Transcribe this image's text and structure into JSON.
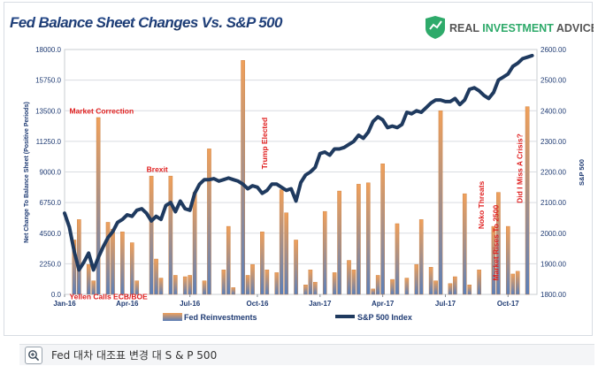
{
  "logo": {
    "brand_plain": "REAL ",
    "brand_accent": "INVESTMENT",
    "brand_end": " ADVICE"
  },
  "caption": {
    "text": "Fed 대차 대조표 변경 대 S & P 500"
  },
  "colors": {
    "title": "#1f3b73",
    "line": "#1f3a5f",
    "bar_top": "#f0a05a",
    "bar_bottom": "#5b7fb8",
    "annotation": "#e02020",
    "axis_text": "#1f3b73",
    "logo_green": "#2eaa6a"
  },
  "chart_data": {
    "type": "bar+line",
    "title": "Fed Balance Sheet Changes Vs. S&P 500",
    "ylabel_left": "Net Change To Balance Sheet (Positive Periods)",
    "ylabel_right": "S&P 500",
    "ylim_left": [
      0,
      18000
    ],
    "ylim_right": [
      1800,
      2600
    ],
    "yticks_left": [
      "0.0",
      "2250.0",
      "4500.0",
      "6750.0",
      "9000.0",
      "11250.0",
      "13500.0",
      "15750.0",
      "18000.0"
    ],
    "yticks_right": [
      "1800.00",
      "1900.00",
      "2000.00",
      "2100.00",
      "2200.00",
      "2300.00",
      "2400.00",
      "2500.00",
      "2600.00"
    ],
    "x_range": [
      0,
      98
    ],
    "x_ticks": [
      {
        "label": "Jan-16",
        "x": 0
      },
      {
        "label": "Apr-16",
        "x": 13
      },
      {
        "label": "Jul-16",
        "x": 26
      },
      {
        "label": "Oct-16",
        "x": 40
      },
      {
        "label": "Jan-17",
        "x": 53
      },
      {
        "label": "Apr-17",
        "x": 66
      },
      {
        "label": "Jul-17",
        "x": 79
      },
      {
        "label": "Oct-17",
        "x": 92
      }
    ],
    "legend": [
      "Fed Reinvestments",
      "S&P 500 Index"
    ],
    "series": [
      {
        "name": "Fed Reinvestments",
        "type": "bar",
        "x": [
          2,
          3,
          5,
          6,
          7,
          9,
          10,
          12,
          14,
          15,
          18,
          19,
          20,
          22,
          23,
          25,
          26,
          27,
          29,
          30,
          33,
          34,
          35,
          37,
          38,
          39,
          41,
          42,
          44,
          45,
          46,
          48,
          50,
          51,
          52,
          54,
          56,
          57,
          59,
          60,
          61,
          63,
          64,
          65,
          66,
          68,
          69,
          71,
          73,
          74,
          76,
          77,
          78,
          80,
          81,
          83,
          84,
          86,
          89,
          90,
          92,
          93,
          94,
          96
        ],
        "values": [
          4000,
          5500,
          2200,
          1000,
          13000,
          5300,
          4800,
          4600,
          3800,
          1000,
          8700,
          2600,
          1200,
          8700,
          1400,
          1300,
          1400,
          7500,
          1000,
          10700,
          1800,
          5000,
          500,
          17200,
          1400,
          2200,
          4600,
          1800,
          1600,
          7700,
          6000,
          4000,
          700,
          1800,
          900,
          6100,
          1600,
          7600,
          2500,
          1800,
          8100,
          8200,
          400,
          1400,
          9600,
          1100,
          5200,
          1200,
          2200,
          5500,
          2000,
          1000,
          13500,
          800,
          1300,
          7400,
          700,
          1800,
          5000,
          7500,
          5000,
          1500,
          1700,
          13800
        ]
      },
      {
        "name": "S&P 500 Index",
        "type": "line",
        "x": [
          0,
          1,
          2,
          3,
          4,
          5,
          6,
          7,
          8,
          9,
          10,
          11,
          12,
          13,
          14,
          15,
          16,
          17,
          18,
          19,
          20,
          21,
          22,
          23,
          24,
          25,
          26,
          27,
          28,
          29,
          30,
          31,
          32,
          33,
          34,
          35,
          36,
          37,
          38,
          39,
          40,
          41,
          42,
          43,
          44,
          45,
          46,
          47,
          48,
          49,
          50,
          51,
          52,
          53,
          54,
          55,
          56,
          57,
          58,
          59,
          60,
          61,
          62,
          63,
          64,
          65,
          66,
          67,
          68,
          69,
          70,
          71,
          72,
          73,
          74,
          75,
          76,
          77,
          78,
          79,
          80,
          81,
          82,
          83,
          84,
          85,
          86,
          87,
          88,
          89,
          90,
          91,
          92,
          93,
          94,
          95,
          96,
          97
        ],
        "values": [
          2065,
          2020,
          1940,
          1880,
          1905,
          1935,
          1880,
          1920,
          1955,
          1985,
          2005,
          2035,
          2045,
          2060,
          2055,
          2075,
          2080,
          2065,
          2040,
          2055,
          2045,
          2090,
          2100,
          2070,
          2105,
          2080,
          2075,
          2130,
          2160,
          2175,
          2175,
          2178,
          2170,
          2175,
          2180,
          2175,
          2170,
          2160,
          2145,
          2155,
          2150,
          2130,
          2140,
          2160,
          2160,
          2150,
          2140,
          2145,
          2105,
          2165,
          2190,
          2200,
          2215,
          2260,
          2265,
          2255,
          2275,
          2275,
          2280,
          2290,
          2300,
          2320,
          2310,
          2330,
          2365,
          2380,
          2370,
          2345,
          2350,
          2345,
          2355,
          2395,
          2390,
          2400,
          2395,
          2410,
          2425,
          2435,
          2435,
          2430,
          2430,
          2440,
          2420,
          2435,
          2470,
          2475,
          2465,
          2450,
          2440,
          2460,
          2500,
          2510,
          2520,
          2545,
          2555,
          2570,
          2575,
          2580
        ]
      }
    ],
    "annotations": [
      {
        "text": "Market Correction",
        "x": 1,
        "y": 13300,
        "orientation": "horizontal"
      },
      {
        "text": "Yellen Calls ECB/BOE",
        "x": 1,
        "y": -350,
        "orientation": "horizontal"
      },
      {
        "text": "Brexit",
        "x": 17,
        "y": 9000,
        "orientation": "horizontal"
      },
      {
        "text": "Trump Elected",
        "x": 42,
        "y": 9200,
        "orientation": "vertical"
      },
      {
        "text": "Noko Threats",
        "x": 87,
        "y": 4800,
        "orientation": "vertical"
      },
      {
        "text": "Market Rises To 2500",
        "x": 90,
        "y": 1000,
        "orientation": "vertical"
      },
      {
        "text": "Did I Miss A Crisis?",
        "x": 95,
        "y": 6700,
        "orientation": "vertical"
      }
    ]
  }
}
